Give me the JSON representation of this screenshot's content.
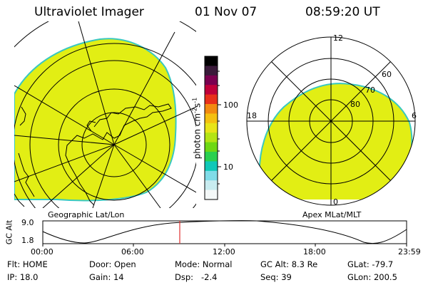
{
  "header": {
    "instrument": "Ultraviolet Imager",
    "date": "01 Nov 07",
    "time": "08:59:20 UT"
  },
  "colors": {
    "fill": "#e2ee14",
    "edge": "#39c8c0",
    "timeline_marker": "#e03030"
  },
  "colorbar": {
    "unit_label": "photon cm-2s-1",
    "ticks": [
      "100",
      "10"
    ],
    "colors_top_to_bottom": [
      "#000000",
      "#3a1a3a",
      "#7a0050",
      "#c0003a",
      "#e8301a",
      "#f28a10",
      "#f4c010",
      "#e8e418",
      "#b4e414",
      "#6ed814",
      "#2ad050",
      "#10c8b8",
      "#80dce8",
      "#c8ecf0",
      "#f4f8f8"
    ]
  },
  "left_panel": {
    "caption": "Geographic Lat/Lon"
  },
  "right_panel": {
    "caption": "Apex MLat/MLT",
    "mlt_labels": [
      "12",
      "18",
      "6",
      "0"
    ],
    "mlat_labels": [
      "60",
      "70",
      "80"
    ]
  },
  "timeline": {
    "ylabel": "GC Alt",
    "ymax": "9.0",
    "ymin": "1.8",
    "xticks": [
      "00:00",
      "06:00",
      "12:00",
      "18:00",
      "23:59"
    ],
    "marker_time": "08:59"
  },
  "status": {
    "flt": "Flt: HOME",
    "ip": "IP: 18.0",
    "door": "Door: Open",
    "gain": "Gain: 14",
    "mode": "Mode: Normal",
    "dsp": "Dsp:   -2.4",
    "gcalt": "GC Alt: 8.3 Re",
    "seq": "Seq: 39",
    "glat": "GLat: -79.7",
    "glon": "GLon: 200.5"
  }
}
